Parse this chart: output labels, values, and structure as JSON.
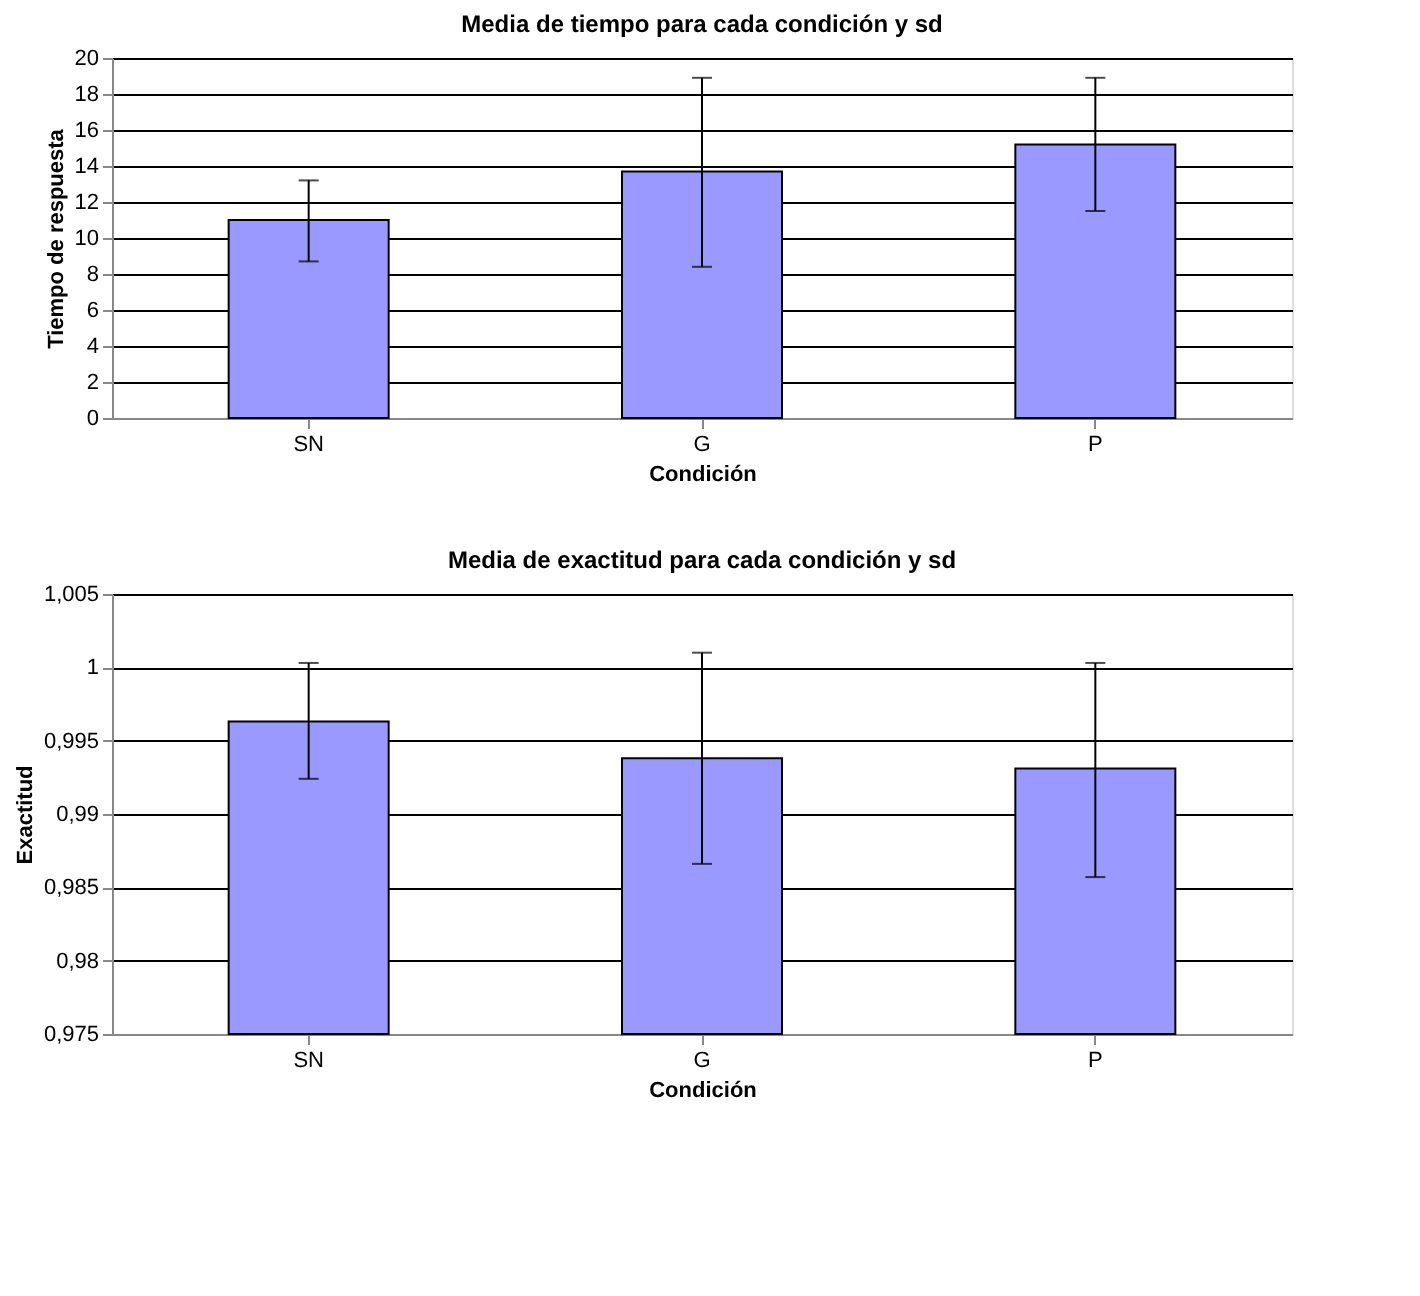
{
  "chart_data": [
    {
      "type": "bar",
      "title": "Media de tiempo para cada condición y sd",
      "xlabel": "Condición",
      "ylabel": "Tiempo de respuesta",
      "categories": [
        "SN",
        "G",
        "P"
      ],
      "series": [
        {
          "color": "#9999ff",
          "values": [
            11.0,
            13.7,
            15.2
          ],
          "errors": [
            [
              8.7,
              13.2
            ],
            [
              8.4,
              18.9
            ],
            [
              11.5,
              18.9
            ]
          ]
        }
      ],
      "ylim": [
        0,
        20
      ],
      "yticks": [
        0,
        2,
        4,
        6,
        8,
        10,
        12,
        14,
        16,
        18,
        20
      ],
      "grid": "y"
    },
    {
      "type": "bar",
      "title": "Media de exactitud para cada condición y sd",
      "xlabel": "Condición",
      "ylabel": "Exactitud",
      "categories": [
        "SN",
        "G",
        "P"
      ],
      "series": [
        {
          "color": "#9999ff",
          "values": [
            0.9963,
            0.9938,
            0.9931
          ],
          "errors": [
            [
              0.9924,
              1.0003
            ],
            [
              0.9866,
              1.001
            ],
            [
              0.9857,
              1.0003
            ]
          ]
        }
      ],
      "ylim": [
        0.975,
        1.005
      ],
      "yticks": [
        {
          "value": 0.975,
          "label": "0,975"
        },
        {
          "value": 0.98,
          "label": "0,98"
        },
        {
          "value": 0.985,
          "label": "0,985"
        },
        {
          "value": 0.99,
          "label": "0,99"
        },
        {
          "value": 0.995,
          "label": "0,995"
        },
        1,
        {
          "value": 1.005,
          "label": "1,005"
        }
      ],
      "grid": "y"
    }
  ]
}
